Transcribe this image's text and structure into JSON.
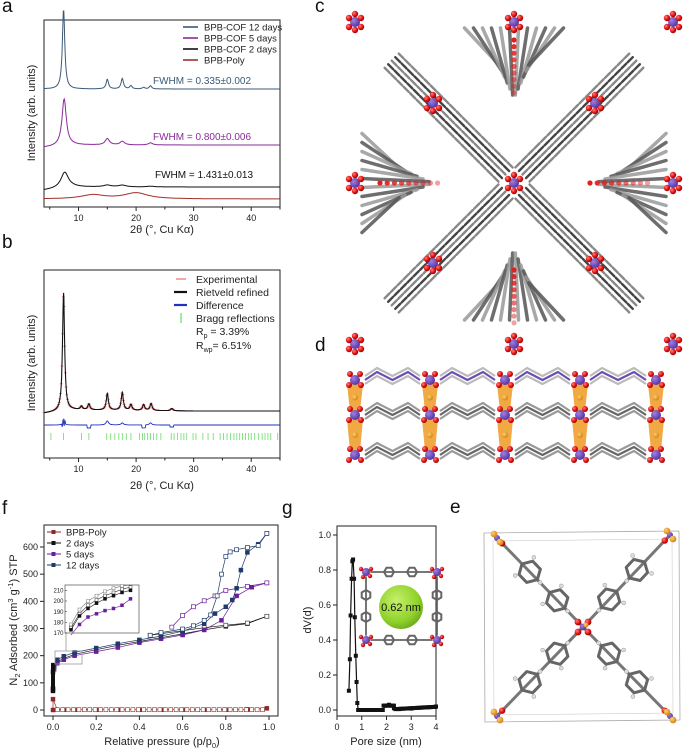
{
  "panel_labels": {
    "a": "a",
    "b": "b",
    "c": "c",
    "d": "d",
    "e": "e",
    "f": "f",
    "g": "g"
  },
  "colors": {
    "cof12": "#3b5a78",
    "cof5": "#8a2a9a",
    "cof2": "#111111",
    "poly": "#a0302a",
    "experimental": "#e05050",
    "rietveld": "#111111",
    "difference": "#2030c0",
    "bragg": "#66dd66",
    "f_poly": "#8b2a2a",
    "f_2days": "#111111",
    "f_5days": "#6a1f9a",
    "f_12days": "#1f3a6a",
    "sphere": "#8fd12a"
  },
  "chart_data": [
    {
      "id": "a",
      "type": "line",
      "title": "",
      "xlabel": "2θ (°, Cu Kα)",
      "ylabel": "Intensity (arb. units)",
      "xlim": [
        4,
        45
      ],
      "xticks": [
        10,
        20,
        30,
        40
      ],
      "legend_position": "top-right",
      "series": [
        {
          "name": "BPB-COF 12 days",
          "peaks": [
            [
              7.4,
              1.0
            ],
            [
              15.0,
              0.12
            ],
            [
              17.6,
              0.13
            ],
            [
              19.1,
              0.04
            ],
            [
              21.3,
              0.02
            ],
            [
              22.5,
              0.04
            ]
          ],
          "fwhm_label": "FWHM = 0.335±0.002"
        },
        {
          "name": "BPB-COF 5 days",
          "peaks": [
            [
              7.5,
              0.9
            ],
            [
              15.0,
              0.12
            ],
            [
              17.6,
              0.07
            ],
            [
              22.5,
              0.04
            ]
          ],
          "fwhm_label": "FWHM = 0.800±0.006"
        },
        {
          "name": "BPB-COF 2 days",
          "peaks": [
            [
              7.6,
              0.45
            ],
            [
              15.0,
              0.05
            ],
            [
              17.6,
              0.05
            ],
            [
              22.5,
              0.02
            ]
          ],
          "fwhm_label": "FWHM = 1.431±0.013"
        },
        {
          "name": "BPB-Poly",
          "peaks": [
            [
              12.5,
              0.02
            ],
            [
              20,
              0.03
            ]
          ]
        }
      ]
    },
    {
      "id": "b",
      "type": "line",
      "title": "",
      "xlabel": "2θ (°, Cu Kα)",
      "ylabel": "Intensity (arb. units)",
      "xlim": [
        4,
        45
      ],
      "xticks": [
        10,
        20,
        30,
        40
      ],
      "legend_position": "top-right",
      "legend": [
        "Experimental",
        "Rietveld refined",
        "Difference",
        "Bragg reflections"
      ],
      "stats": {
        "rp_label": "R",
        "rp_sub": "p",
        "rp_value": " = 3.39%",
        "rwp_label": "R",
        "rwp_sub": "wp",
        "rwp_value": "= 6.51%"
      },
      "peaks": [
        [
          7.4,
          1.0
        ],
        [
          10.5,
          0.03
        ],
        [
          11.8,
          0.05
        ],
        [
          15.0,
          0.14
        ],
        [
          17.6,
          0.15
        ],
        [
          19.1,
          0.05
        ],
        [
          21.3,
          0.05
        ],
        [
          22.6,
          0.06
        ],
        [
          26.2,
          0.02
        ]
      ],
      "bragg_positions": [
        5.2,
        7.4,
        10.5,
        11.8,
        14.9,
        15.6,
        16.3,
        17.0,
        17.6,
        18.3,
        19.1,
        20.6,
        21.1,
        21.5,
        22.0,
        22.5,
        23.0,
        23.6,
        24.3,
        26.1,
        26.6,
        27.2,
        27.8,
        28.3,
        28.8,
        29.9,
        30.4,
        31.6,
        32.5,
        33.4,
        34.6,
        35.2,
        35.8,
        36.4,
        37.0,
        37.5,
        38.0,
        38.5,
        39.0,
        39.5,
        40.0,
        40.6,
        41.3,
        41.9,
        42.4,
        42.9,
        43.4,
        44.6
      ]
    },
    {
      "id": "f",
      "type": "scatter",
      "title": "",
      "xlabel": "Relative pressure (p/p",
      "xlabel_sub": "0",
      "xlabel_tail": ")",
      "ylabel": "N",
      "ylabel_sub": "2",
      "ylabel_mid": " Adsorbed (cm",
      "ylabel_sup1": "3",
      "ylabel_mid2": " g",
      "ylabel_sup2": "-1",
      "ylabel_tail": ") STP",
      "xlim": [
        -0.04,
        1.04
      ],
      "ylim": [
        -20,
        660
      ],
      "xticks": [
        "0.0",
        "0.2",
        "0.4",
        "0.6",
        "0.8",
        "1.0"
      ],
      "yticks": [
        "0",
        "100",
        "200",
        "300",
        "400",
        "500",
        "600"
      ],
      "legend_position": "top-left",
      "inset_yticks": [
        "170",
        "180",
        "190",
        "200",
        "210"
      ],
      "series": [
        {
          "name": "BPB-Poly",
          "adsorption": [
            [
              0.0,
              0
            ],
            [
              0.0,
              40
            ],
            [
              0.02,
              1
            ],
            [
              0.05,
              1
            ],
            [
              0.1,
              1
            ],
            [
              0.2,
              1
            ],
            [
              0.3,
              1
            ],
            [
              0.4,
              1
            ],
            [
              0.5,
              1
            ],
            [
              0.6,
              1
            ],
            [
              0.7,
              1
            ],
            [
              0.8,
              1
            ],
            [
              0.9,
              2
            ],
            [
              0.99,
              6
            ]
          ],
          "desorption": []
        },
        {
          "name": "2 days",
          "adsorption": [
            [
              0.0,
              75
            ],
            [
              0.0,
              140
            ],
            [
              0.005,
              160
            ],
            [
              0.02,
              178
            ],
            [
              0.05,
              190
            ],
            [
              0.1,
              205
            ],
            [
              0.2,
              222
            ],
            [
              0.3,
              238
            ],
            [
              0.4,
              252
            ],
            [
              0.5,
              266
            ],
            [
              0.6,
              280
            ],
            [
              0.7,
              295
            ],
            [
              0.8,
              308
            ],
            [
              0.9,
              318
            ],
            [
              0.99,
              345
            ]
          ],
          "desorption": [
            [
              0.99,
              345
            ],
            [
              0.9,
              320
            ],
            [
              0.8,
              312
            ],
            [
              0.7,
              303
            ],
            [
              0.6,
              292
            ],
            [
              0.5,
              281
            ],
            [
              0.45,
              275
            ]
          ]
        },
        {
          "name": "5 days",
          "adsorption": [
            [
              0.0,
              70
            ],
            [
              0.005,
              150
            ],
            [
              0.02,
              172
            ],
            [
              0.05,
              185
            ],
            [
              0.1,
              200
            ],
            [
              0.2,
              215
            ],
            [
              0.3,
              230
            ],
            [
              0.4,
              248
            ],
            [
              0.5,
              262
            ],
            [
              0.6,
              276
            ],
            [
              0.7,
              295
            ],
            [
              0.78,
              330
            ],
            [
              0.85,
              420
            ],
            [
              0.92,
              452
            ],
            [
              0.99,
              468
            ]
          ],
          "desorption": [
            [
              0.99,
              468
            ],
            [
              0.9,
              455
            ],
            [
              0.8,
              440
            ],
            [
              0.75,
              420
            ],
            [
              0.7,
              402
            ],
            [
              0.65,
              380
            ],
            [
              0.6,
              348
            ],
            [
              0.55,
              305
            ]
          ]
        },
        {
          "name": "12 days",
          "adsorption": [
            [
              0.0,
              80
            ],
            [
              0.005,
              165
            ],
            [
              0.02,
              185
            ],
            [
              0.05,
              198
            ],
            [
              0.1,
              212
            ],
            [
              0.2,
              228
            ],
            [
              0.3,
              244
            ],
            [
              0.4,
              258
            ],
            [
              0.5,
              272
            ],
            [
              0.6,
              290
            ],
            [
              0.7,
              318
            ],
            [
              0.75,
              355
            ],
            [
              0.8,
              380
            ],
            [
              0.83,
              405
            ],
            [
              0.85,
              448
            ],
            [
              0.87,
              515
            ],
            [
              0.9,
              580
            ],
            [
              0.95,
              610
            ],
            [
              0.99,
              650
            ]
          ],
          "desorption": [
            [
              0.99,
              650
            ],
            [
              0.95,
              605
            ],
            [
              0.9,
              598
            ],
            [
              0.85,
              590
            ],
            [
              0.82,
              582
            ],
            [
              0.8,
              565
            ],
            [
              0.78,
              500
            ],
            [
              0.76,
              420
            ],
            [
              0.73,
              350
            ],
            [
              0.7,
              330
            ],
            [
              0.65,
              310
            ],
            [
              0.6,
              298
            ],
            [
              0.5,
              285
            ],
            [
              0.45,
              275
            ]
          ]
        }
      ]
    },
    {
      "id": "g",
      "type": "line",
      "title": "",
      "xlabel": "Pore size (nm)",
      "ylabel": "dV(d)",
      "xlim": [
        0,
        4
      ],
      "ylim": [
        -0.03,
        1.05
      ],
      "xticks": [
        "0",
        "1",
        "2",
        "3",
        "4"
      ],
      "yticks": [
        "0.0",
        "0.2",
        "0.4",
        "0.6",
        "0.8",
        "1.0"
      ],
      "annotation": "0.62 nm",
      "points": [
        [
          0.48,
          0.11
        ],
        [
          0.52,
          0.29
        ],
        [
          0.55,
          0.54
        ],
        [
          0.59,
          0.75
        ],
        [
          0.62,
          0.85
        ],
        [
          0.65,
          0.86
        ],
        [
          0.69,
          0.75
        ],
        [
          0.72,
          0.53
        ],
        [
          0.76,
          0.31
        ],
        [
          0.79,
          0.16
        ],
        [
          0.82,
          0.04
        ],
        [
          0.86,
          0.0
        ],
        [
          0.95,
          0.0
        ],
        [
          1.1,
          0.0
        ],
        [
          1.3,
          0.0
        ],
        [
          1.5,
          0.0
        ],
        [
          1.7,
          0.0
        ],
        [
          1.85,
          0.0
        ],
        [
          1.95,
          0.025
        ],
        [
          2.1,
          0.03
        ],
        [
          2.2,
          0.025
        ],
        [
          2.3,
          0.01
        ],
        [
          2.5,
          0.005
        ],
        [
          3.0,
          0.008
        ],
        [
          3.5,
          0.015
        ],
        [
          4.0,
          0.02
        ]
      ]
    }
  ]
}
